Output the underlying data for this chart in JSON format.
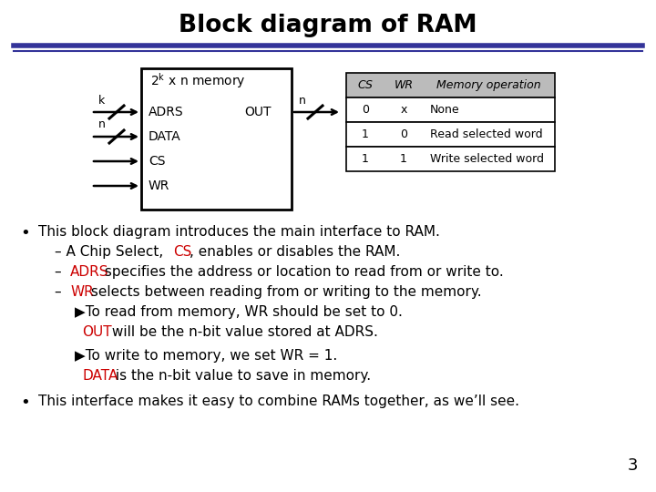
{
  "title": "Block diagram of RAM",
  "title_fontsize": 18,
  "background_color": "#ffffff",
  "header_line_color1": "#333399",
  "header_line_color2": "#333399",
  "inputs": [
    "ADRS",
    "DATA",
    "CS",
    "WR"
  ],
  "output_label": "OUT",
  "table_col_headers": [
    "CS",
    "WR",
    "Memory operation"
  ],
  "table_rows": [
    [
      "0",
      "x",
      "None"
    ],
    [
      "1",
      "0",
      "Read selected word"
    ],
    [
      "1",
      "1",
      "Write selected word"
    ]
  ],
  "page_number": "3",
  "red_color": "#cc0000",
  "black_color": "#000000",
  "gray_header": "#bbbbbb",
  "font": "DejaVu Sans"
}
